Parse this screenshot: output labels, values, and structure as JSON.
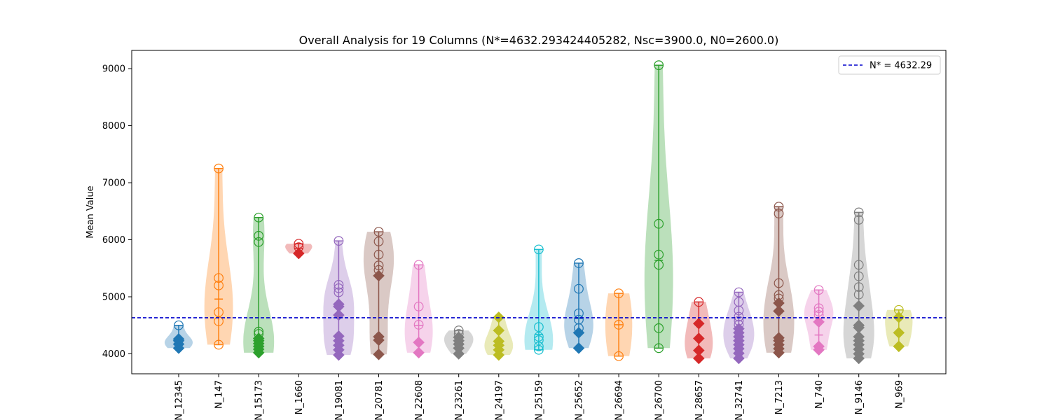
{
  "chart_data": {
    "type": "violin",
    "title": "Overall Analysis for 19 Columns (N*=4632.293424405282, Nsc=3900.0, N0=2600.0)",
    "xlabel": "",
    "ylabel": "Mean Value",
    "ylim": [
      3650,
      9320
    ],
    "yticks": [
      4000,
      5000,
      6000,
      7000,
      8000,
      9000
    ],
    "reference_line": {
      "value": 4632.29,
      "label": "N* = 4632.29",
      "color": "#0000cc",
      "style": "dashed"
    },
    "legend": {
      "position": "top-right",
      "entries": [
        "N* = 4632.29"
      ]
    },
    "grid": false,
    "columns": [
      {
        "name": "N_12345",
        "color": "#1f77b4",
        "circles": [
          4500
        ],
        "diamonds": [
          4100,
          4170,
          4230,
          4260
        ],
        "min": 4100,
        "max": 4500,
        "mean": 4230
      },
      {
        "name": "N_147",
        "color": "#ff7f0e",
        "circles": [
          7250,
          5330,
          5200,
          4730,
          4570,
          4160
        ],
        "diamonds": [],
        "min": 4160,
        "max": 7250,
        "mean": 4960
      },
      {
        "name": "N_15173",
        "color": "#2ca02c",
        "circles": [
          6390,
          6070,
          5960,
          4390,
          4350
        ],
        "diamonds": [
          4020,
          4080,
          4130,
          4180,
          4230,
          4270
        ],
        "min": 4020,
        "max": 6390,
        "mean": 4280
      },
      {
        "name": "N_1660",
        "color": "#d62728",
        "circles": [
          5930,
          5870
        ],
        "diamonds": [
          5760
        ],
        "min": 5760,
        "max": 5930,
        "mean": 5850
      },
      {
        "name": "N_19081",
        "color": "#9467bd",
        "circles": [
          5980,
          5210,
          5150,
          5080
        ],
        "diamonds": [
          3980,
          4070,
          4150,
          4230,
          4310,
          4680,
          4830,
          4870
        ],
        "min": 3980,
        "max": 5980,
        "mean": 4640
      },
      {
        "name": "N_20781",
        "color": "#8c564b",
        "circles": [
          6140,
          5970,
          5740,
          5550,
          5470
        ],
        "diamonds": [
          3990,
          4240,
          4300,
          5370
        ],
        "min": 3990,
        "max": 6140,
        "mean": 5370
      },
      {
        "name": "N_22608",
        "color": "#e377c2",
        "circles": [
          5560,
          4830,
          4510
        ],
        "diamonds": [
          4020,
          4200
        ],
        "min": 4020,
        "max": 5560,
        "mean": 4500
      },
      {
        "name": "N_23261",
        "color": "#7f7f7f",
        "circles": [
          4410,
          4350
        ],
        "diamonds": [
          4000,
          4100,
          4170,
          4230,
          4290
        ],
        "min": 4000,
        "max": 4410,
        "mean": 4200
      },
      {
        "name": "N_24197",
        "color": "#bcbd22",
        "circles": [],
        "diamonds": [
          3980,
          4070,
          4150,
          4220,
          4410,
          4640
        ],
        "min": 3980,
        "max": 4640,
        "mean": 4200
      },
      {
        "name": "N_25159",
        "color": "#17becf",
        "circles": [
          5830,
          4470,
          4300,
          4240,
          4130,
          4070
        ],
        "diamonds": [],
        "min": 4070,
        "max": 5830,
        "mean": 4340
      },
      {
        "name": "N_25652",
        "color": "#1f77b4",
        "circles": [
          5590,
          5140,
          4710,
          4600,
          4450
        ],
        "diamonds": [
          4100,
          4370
        ],
        "min": 4100,
        "max": 5590,
        "mean": 4620
      },
      {
        "name": "N_26694",
        "color": "#ff7f0e",
        "circles": [
          5060,
          4510,
          3960
        ],
        "diamonds": [],
        "min": 3960,
        "max": 5060,
        "mean": 4510
      },
      {
        "name": "N_26700",
        "color": "#2ca02c",
        "circles": [
          9060,
          6280,
          5740,
          5560,
          4450,
          4100
        ],
        "diamonds": [],
        "min": 4100,
        "max": 9060,
        "mean": 5640
      },
      {
        "name": "N_28657",
        "color": "#d62728",
        "circles": [
          4910
        ],
        "diamonds": [
          3920,
          4060,
          4270,
          4530
        ],
        "min": 3920,
        "max": 4910,
        "mean": 4530
      },
      {
        "name": "N_32741",
        "color": "#9467bd",
        "circles": [
          5080,
          4910,
          4760,
          4650,
          4580,
          4510
        ],
        "diamonds": [
          3920,
          4010,
          4090,
          4160,
          4230,
          4300,
          4370,
          4440
        ],
        "min": 3920,
        "max": 5080,
        "mean": 4440
      },
      {
        "name": "N_7213",
        "color": "#8c564b",
        "circles": [
          6580,
          6460,
          5240,
          5030,
          4970
        ],
        "diamonds": [
          4020,
          4090,
          4160,
          4230,
          4280,
          4750,
          4890
        ],
        "min": 4020,
        "max": 6580,
        "mean": 4890
      },
      {
        "name": "N_740",
        "color": "#e377c2",
        "circles": [
          5120,
          4800,
          4740,
          4680
        ],
        "diamonds": [
          4070,
          4130,
          4560
        ],
        "min": 4070,
        "max": 5120,
        "mean": 4330
      },
      {
        "name": "N_9146",
        "color": "#7f7f7f",
        "circles": [
          6480,
          6350,
          5560,
          5360,
          5170,
          5040
        ],
        "diamonds": [
          3920,
          4000,
          4080,
          4160,
          4230,
          4300,
          4460,
          4500,
          4840
        ],
        "min": 3920,
        "max": 6480,
        "mean": 4500
      },
      {
        "name": "N_969",
        "color": "#bcbd22",
        "circles": [
          4770
        ],
        "diamonds": [
          4130,
          4370,
          4640
        ],
        "min": 4130,
        "max": 4770,
        "mean": 4640
      }
    ]
  }
}
